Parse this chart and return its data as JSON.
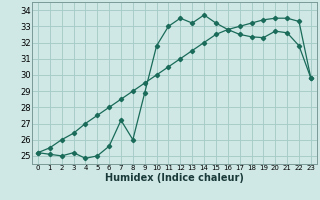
{
  "title": "",
  "xlabel": "Humidex (Indice chaleur)",
  "xlim": [
    -0.5,
    23.5
  ],
  "ylim": [
    24.5,
    34.5
  ],
  "yticks": [
    25,
    26,
    27,
    28,
    29,
    30,
    31,
    32,
    33,
    34
  ],
  "xticks": [
    0,
    1,
    2,
    3,
    4,
    5,
    6,
    7,
    8,
    9,
    10,
    11,
    12,
    13,
    14,
    15,
    16,
    17,
    18,
    19,
    20,
    21,
    22,
    23
  ],
  "bg_color": "#cfe8e5",
  "grid_color": "#a8cdc9",
  "line_color": "#1a6b5a",
  "line1_x": [
    0,
    1,
    2,
    3,
    4,
    5,
    6,
    7,
    8,
    9,
    10,
    11,
    12,
    13,
    14,
    15,
    16,
    17,
    18,
    19,
    20,
    21,
    22,
    23
  ],
  "line1_y": [
    25.2,
    25.1,
    25.0,
    25.2,
    24.85,
    25.0,
    25.6,
    27.2,
    26.0,
    28.9,
    31.8,
    33.0,
    33.5,
    33.2,
    33.7,
    33.2,
    32.8,
    32.5,
    32.35,
    32.3,
    32.7,
    32.6,
    31.8,
    29.8
  ],
  "line2_x": [
    0,
    1,
    2,
    3,
    4,
    5,
    6,
    7,
    8,
    9,
    10,
    11,
    12,
    13,
    14,
    15,
    16,
    17,
    18,
    19,
    20,
    21,
    22,
    23
  ],
  "line2_y": [
    25.2,
    25.5,
    26.0,
    26.4,
    27.0,
    27.5,
    28.0,
    28.5,
    29.0,
    29.5,
    30.0,
    30.5,
    31.0,
    31.5,
    32.0,
    32.5,
    32.8,
    33.0,
    33.2,
    33.4,
    33.5,
    33.5,
    33.3,
    29.8
  ]
}
